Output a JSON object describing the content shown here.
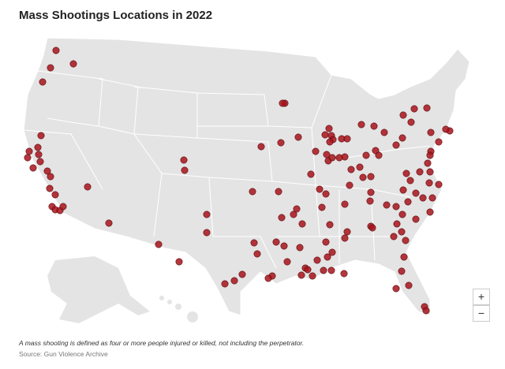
{
  "title": "Mass Shootings Locations in 2022",
  "zoom_in": "+",
  "zoom_out": "−",
  "note": "A mass shooting is defined as four or more people injured or killed, not including the perpetrator.",
  "source": "Source: Gun Violence Archive"
}
